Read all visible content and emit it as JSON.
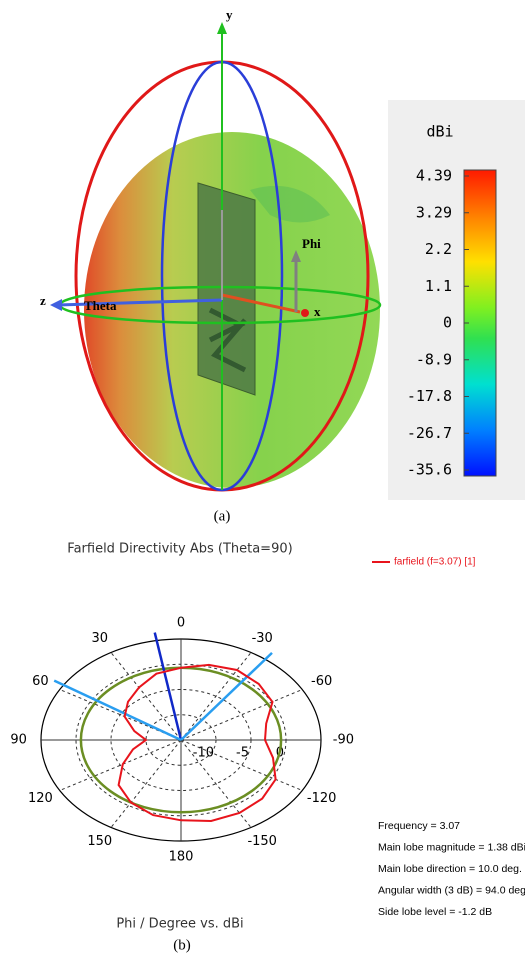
{
  "chart_data": [
    {
      "type": "colorbar",
      "title": "dBi",
      "ticks": [
        4.39,
        3.29,
        2.2,
        1.1,
        0,
        -8.9,
        -17.8,
        -26.7,
        -35.6
      ],
      "colors": [
        "#ff1a00",
        "#ff7a00",
        "#ffd000",
        "#b8f000",
        "#40e040",
        "#00e0a0",
        "#00c8ff",
        "#0070ff",
        "#0010ff"
      ],
      "axis_labels": {
        "y": "y",
        "phi": "Phi",
        "z": "z",
        "theta": "Theta",
        "x": "x"
      },
      "caption": "(a)"
    },
    {
      "type": "polar",
      "title": "Farfield Directivity Abs (Theta=90)",
      "x": [
        0,
        15,
        30,
        45,
        60,
        75,
        90,
        105,
        120,
        135,
        150,
        165,
        180,
        -165,
        -150,
        -135,
        -120,
        -105,
        -90,
        -75,
        -60,
        -45,
        -30,
        -15
      ],
      "series": [
        {
          "name": "farfield (f=3.07) [1]",
          "color": "#e8141c",
          "values": [
            -0.7,
            -1.4,
            -3,
            -4.3,
            -5.7,
            -8.1,
            -10,
            -7.9,
            -5.4,
            -2.4,
            -0.7,
            0.4,
            0.9,
            1.6,
            1.7,
            1.4,
            0.6,
            -1.4,
            -3,
            -2.4,
            0.1,
            0.7,
            1,
            0.4
          ]
        }
      ],
      "rlim": [
        -15,
        5
      ],
      "rticks": [
        -10,
        -5,
        0
      ],
      "angle_ticks": [
        0,
        30,
        60,
        90,
        120,
        150,
        180,
        -150,
        -120,
        -90,
        -60,
        -30
      ],
      "green_ring": -0.7,
      "green_color": "#6b8e23",
      "main_lobe_direction": 10,
      "angular_width": 94,
      "xlabel": "Phi / Degree vs. dBi",
      "annotations": [
        "Frequency = 3.07",
        "Main lobe magnitude =    1.38 dBi",
        "Main lobe direction =  10.0 deg.",
        "Angular width (3 dB) =  94.0 deg.",
        "Side lobe level =  -1.2 dB"
      ],
      "caption": "(b)"
    }
  ]
}
